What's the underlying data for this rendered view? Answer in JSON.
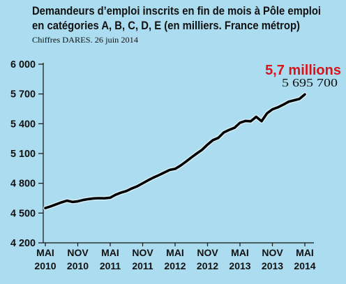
{
  "colors": {
    "background": "#abdcef",
    "text": "#111111",
    "axis": "#111111",
    "line": "#000000",
    "line_halo": "#e9f7fc",
    "accent": "#d8141c"
  },
  "chart_data": {
    "type": "line",
    "title_lines": [
      "Demandeurs d’emploi inscrits en fin de mois à Pôle emploi",
      "en catégories A, B, C, D, E (en milliers. France métrop)"
    ],
    "subtitle": "Chiffres DARES. 26 juin 2014",
    "xlabel": "",
    "ylabel": "",
    "ylim": [
      4200,
      6000
    ],
    "grid": false,
    "x": [
      "2010-05",
      "2010-06",
      "2010-07",
      "2010-08",
      "2010-09",
      "2010-10",
      "2010-11",
      "2010-12",
      "2011-01",
      "2011-02",
      "2011-03",
      "2011-04",
      "2011-05",
      "2011-06",
      "2011-07",
      "2011-08",
      "2011-09",
      "2011-10",
      "2011-11",
      "2011-12",
      "2012-01",
      "2012-02",
      "2012-03",
      "2012-04",
      "2012-05",
      "2012-06",
      "2012-07",
      "2012-08",
      "2012-09",
      "2012-10",
      "2012-11",
      "2012-12",
      "2013-01",
      "2013-02",
      "2013-03",
      "2013-04",
      "2013-05",
      "2013-06",
      "2013-07",
      "2013-08",
      "2013-09",
      "2013-10",
      "2013-11",
      "2013-12",
      "2014-01",
      "2014-02",
      "2014-03",
      "2014-04",
      "2014-05"
    ],
    "series": [
      {
        "values": [
          4550,
          4568,
          4588,
          4608,
          4625,
          4612,
          4618,
          4632,
          4641,
          4648,
          4650,
          4649,
          4655,
          4685,
          4706,
          4722,
          4748,
          4770,
          4800,
          4830,
          4858,
          4882,
          4908,
          4935,
          4945,
          4978,
          5018,
          5060,
          5100,
          5138,
          5190,
          5235,
          5258,
          5312,
          5338,
          5360,
          5410,
          5428,
          5425,
          5470,
          5425,
          5505,
          5545,
          5565,
          5592,
          5622,
          5636,
          5650,
          5695.7
        ]
      }
    ],
    "y_ticks": [
      {
        "value": 6000,
        "label": "6 000"
      },
      {
        "value": 5700,
        "label": "5 700"
      },
      {
        "value": 5400,
        "label": "5 400"
      },
      {
        "value": 5100,
        "label": "5 100"
      },
      {
        "value": 4800,
        "label": "4 800"
      },
      {
        "value": 4500,
        "label": "4 500"
      },
      {
        "value": 4200,
        "label": "4 200"
      }
    ],
    "x_ticks": [
      {
        "date": "2010-05",
        "month": "MAI",
        "year": "2010"
      },
      {
        "date": "2010-11",
        "month": "NOV",
        "year": "2010"
      },
      {
        "date": "2011-05",
        "month": "MAI",
        "year": "2011"
      },
      {
        "date": "2011-11",
        "month": "NOV",
        "year": "2011"
      },
      {
        "date": "2012-05",
        "month": "MAI",
        "year": "2012"
      },
      {
        "date": "2012-11",
        "month": "NOV",
        "year": "2012"
      },
      {
        "date": "2013-05",
        "month": "MAI",
        "year": "2013"
      },
      {
        "date": "2013-11",
        "month": "NOV",
        "year": "2013"
      },
      {
        "date": "2014-05",
        "month": "MAI",
        "year": "2014"
      }
    ],
    "annotations": [
      {
        "text": "5,7 millions"
      },
      {
        "text": "5 695 700"
      }
    ]
  }
}
